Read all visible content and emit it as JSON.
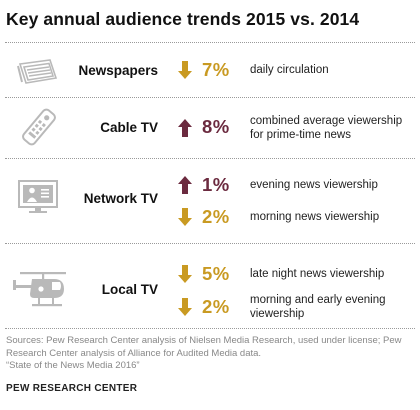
{
  "colors": {
    "down": "#c99a22",
    "up": "#6b2a3f",
    "icon": "#b9b9b9"
  },
  "chart_data": {
    "type": "table",
    "title": "Key annual audience trends 2015 vs. 2014",
    "rows": [
      {
        "name": "Newspapers",
        "icon": "newspaper-icon",
        "metrics": [
          {
            "direction": "down",
            "change": "7%",
            "description": "daily circulation"
          }
        ]
      },
      {
        "name": "Cable TV",
        "icon": "remote-control-icon",
        "metrics": [
          {
            "direction": "up",
            "change": "8%",
            "description": "combined average viewership for prime-time news"
          }
        ]
      },
      {
        "name": "Network TV",
        "icon": "monitor-icon",
        "metrics": [
          {
            "direction": "up",
            "change": "1%",
            "description": "evening news viewership"
          },
          {
            "direction": "down",
            "change": "2%",
            "description": "morning news viewership"
          }
        ]
      },
      {
        "name": "Local TV",
        "icon": "helicopter-icon",
        "metrics": [
          {
            "direction": "down",
            "change": "5%",
            "description": "late night news viewership"
          },
          {
            "direction": "down",
            "change": "2%",
            "description": "morning and early evening viewership"
          }
        ]
      }
    ]
  },
  "footer": {
    "sources": "Sources: Pew Research Center analysis of Nielsen Media Research, used under license; Pew Research Center analysis of Alliance for Audited Media data.",
    "report": "“State of the News Media 2016”",
    "brand": "PEW RESEARCH CENTER"
  }
}
